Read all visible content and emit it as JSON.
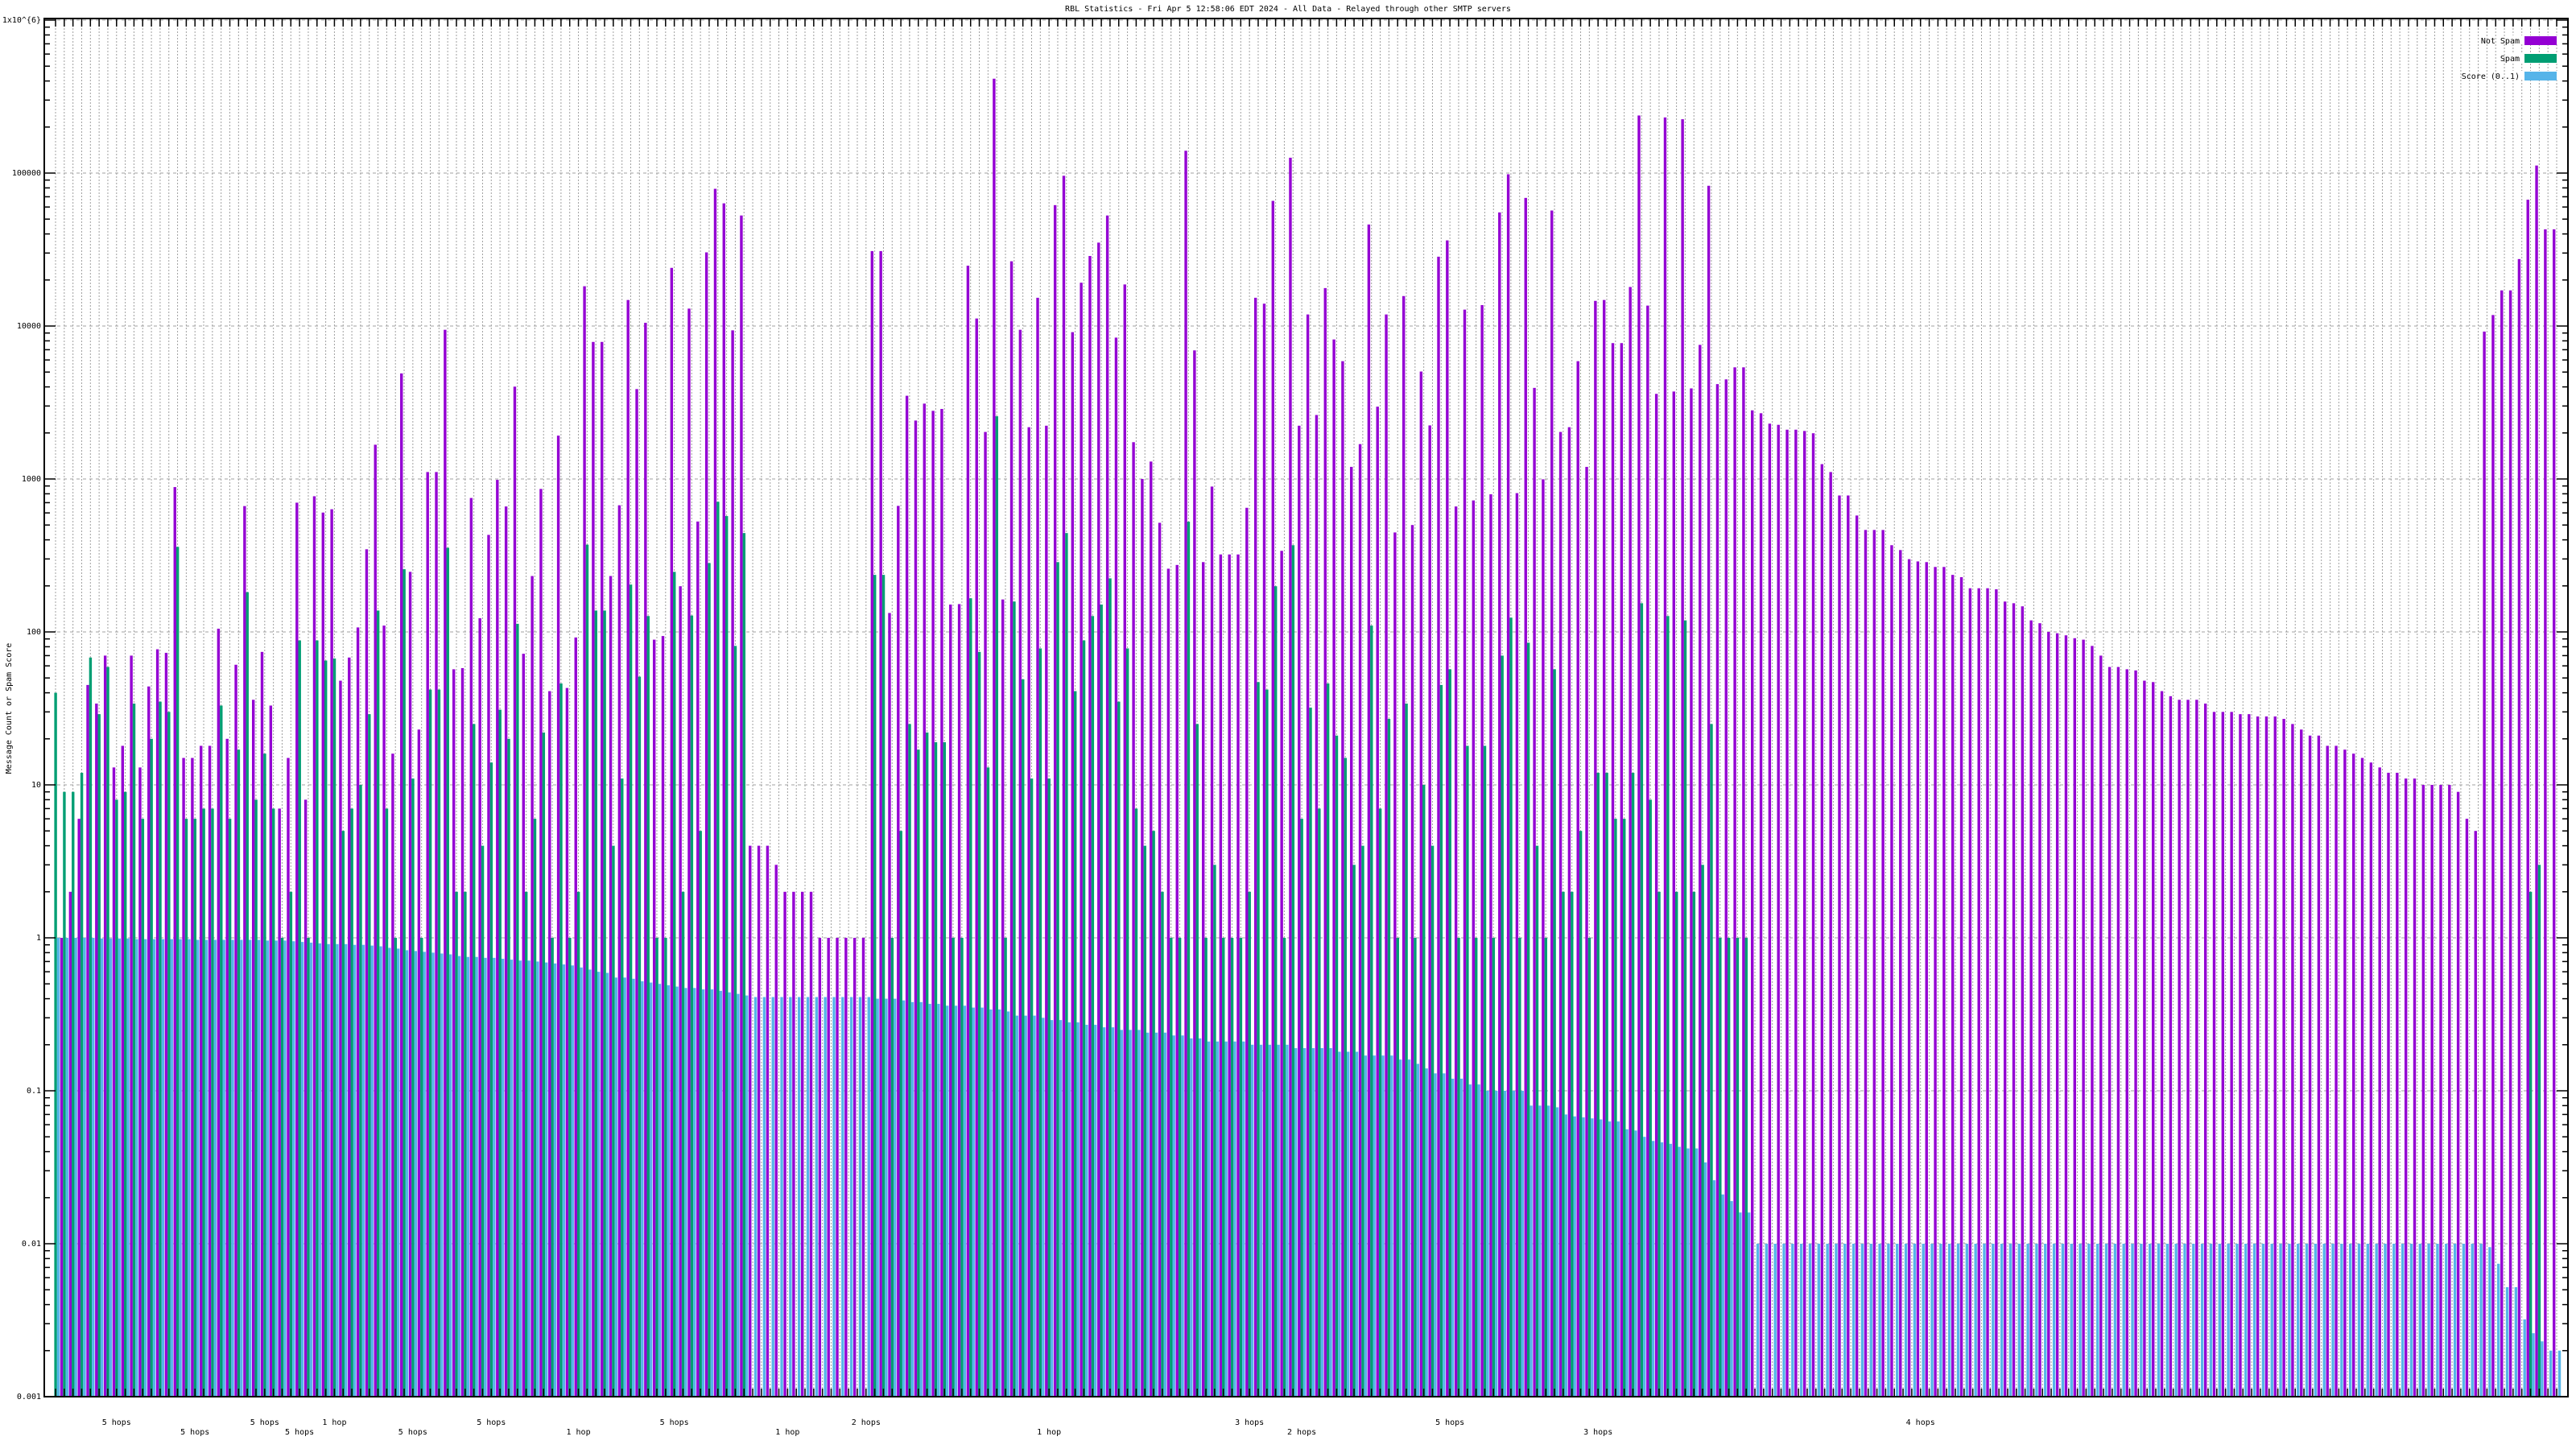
{
  "chart_data": {
    "type": "bar",
    "title": "RBL Statistics - Fri Apr  5 12:58:06 EDT 2024 - All Data - Relayed through other SMTP servers",
    "ylabel": "Message Count or Spam Score",
    "xlabel": "",
    "yscale": "log",
    "ylim": [
      0.001,
      1000000
    ],
    "y_tick_labels": [
      "1x10^{6}",
      "100000",
      "10000",
      "1000",
      "100",
      "10",
      "1",
      "0.1",
      "0.01",
      "0.001"
    ],
    "y_tick_values": [
      1000000,
      100000,
      10000,
      1000,
      100,
      10,
      1,
      0.1,
      0.01,
      0.001
    ],
    "grid": true,
    "legend_position": "top-right",
    "group_count": 288,
    "x_labels_readable": [
      {
        "group": 8,
        "text": "5 hops"
      },
      {
        "group": 17,
        "text": "5 hops"
      },
      {
        "group": 25,
        "text": "5 hops"
      },
      {
        "group": 29,
        "text": "5 hops"
      },
      {
        "group": 33,
        "text": "1 hop"
      },
      {
        "group": 42,
        "text": "5 hops"
      },
      {
        "group": 51,
        "text": "5 hops"
      },
      {
        "group": 61,
        "text": "1 hop"
      },
      {
        "group": 72,
        "text": "5 hops"
      },
      {
        "group": 85,
        "text": "1 hop"
      },
      {
        "group": 94,
        "text": "2 hops"
      },
      {
        "group": 115,
        "text": "1 hop"
      },
      {
        "group": 138,
        "text": "3 hops"
      },
      {
        "group": 144,
        "text": "2 hops"
      },
      {
        "group": 161,
        "text": "5 hops"
      },
      {
        "group": 178,
        "text": "3 hops"
      },
      {
        "group": 215,
        "text": "4 hops"
      }
    ],
    "series": [
      {
        "name": "Not Spam",
        "color": "#9400d3",
        "values": [
          0,
          1,
          2,
          6,
          45,
          34,
          70,
          13,
          18,
          70,
          13,
          44,
          77,
          73,
          885,
          15,
          15,
          18,
          18,
          105,
          20,
          61,
          665,
          36,
          74,
          33,
          7,
          15,
          700,
          8,
          771,
          603,
          634,
          48,
          68,
          107,
          347,
          1675,
          110,
          16,
          4900,
          247,
          23,
          1110,
          1110,
          9450,
          57,
          58,
          751,
          123,
          431,
          987,
          661,
          4015,
          72,
          232,
          861,
          41,
          1920,
          43,
          92,
          18200,
          7870,
          7870,
          232,
          673,
          14800,
          3870,
          10500,
          89,
          94,
          24000,
          199,
          13000,
          527,
          30300,
          78900,
          63400,
          9370,
          52800,
          4,
          4,
          4,
          3,
          2,
          2,
          2,
          2,
          1,
          1,
          1,
          1,
          1,
          1,
          30900,
          30900,
          133,
          667,
          3500,
          2410,
          3110,
          2790,
          2870,
          151,
          152,
          24800,
          11200,
          2030,
          414000,
          163,
          26500,
          9450,
          2180,
          15300,
          2230,
          61700,
          96000,
          9120,
          19200,
          28700,
          35100,
          52800,
          8400,
          18700,
          1740,
          1000,
          1300,
          517,
          259,
          274,
          140000,
          6930,
          286,
          892,
          321,
          321,
          321,
          648,
          15300,
          14000,
          65800,
          339,
          126000,
          2230,
          11900,
          2620,
          17700,
          8170,
          5890,
          1200,
          1690,
          46100,
          2970,
          11900,
          447,
          15700,
          500,
          5040,
          2240,
          28400,
          36300,
          661,
          12800,
          724,
          13700,
          794,
          55300,
          98200,
          808,
          68800,
          3940,
          995,
          56900,
          2030,
          2180,
          5890,
          1200,
          14600,
          14800,
          7730,
          7730,
          18000,
          238000,
          13600,
          3600,
          231000,
          3730,
          225000,
          3910,
          7530,
          82600,
          4170,
          4480,
          5370,
          5370,
          2810,
          2690,
          2300,
          2260,
          2100,
          2100,
          2060,
          1990,
          1250,
          1110,
          780,
          780,
          577,
          464,
          464,
          464,
          369,
          343,
          299,
          289,
          286,
          266,
          266,
          236,
          228,
          193,
          193,
          193,
          190,
          158,
          154,
          147,
          119,
          114,
          100,
          98,
          95,
          91,
          89,
          81,
          70,
          59,
          59,
          57,
          56,
          48,
          47,
          41,
          38,
          36,
          36,
          36,
          34,
          30,
          30,
          30,
          29,
          29,
          28,
          28,
          28,
          27,
          25,
          23,
          21,
          21,
          18,
          18,
          17,
          16,
          15,
          14,
          13,
          12,
          12,
          11,
          11,
          10,
          10,
          10,
          10,
          9,
          6,
          5,
          9200,
          11800,
          17100,
          17100,
          27400,
          67000,
          112000,
          42900,
          42900
        ]
      },
      {
        "name": "Spam",
        "color": "#009e73",
        "values": [
          40,
          9,
          9,
          12,
          68,
          29,
          59,
          8,
          9,
          34,
          6,
          20,
          35,
          30,
          360,
          6,
          6,
          7,
          7,
          33,
          6,
          17,
          182,
          8,
          16,
          7,
          1,
          2,
          88,
          1,
          88,
          65,
          67,
          5,
          7,
          10,
          29,
          138,
          7,
          1,
          257,
          11,
          1,
          42,
          42,
          355,
          2,
          2,
          25,
          4,
          14,
          31,
          20,
          113,
          2,
          6,
          22,
          1,
          46,
          1,
          2,
          372,
          138,
          138,
          4,
          11,
          204,
          51,
          127,
          1,
          1,
          247,
          2,
          128,
          5,
          282,
          710,
          572,
          81,
          443,
          0,
          0,
          0,
          0,
          0,
          0,
          0,
          0,
          0,
          0,
          0,
          0,
          0,
          0,
          236,
          236,
          1,
          5,
          25,
          17,
          22,
          19,
          19,
          1,
          1,
          166,
          74,
          13,
          2570,
          1,
          158,
          49,
          11,
          78,
          11,
          286,
          443,
          41,
          88,
          127,
          151,
          224,
          35,
          78,
          7,
          4,
          5,
          2,
          1,
          1,
          526,
          25,
          1,
          3,
          1,
          1,
          1,
          2,
          47,
          42,
          199,
          1,
          369,
          6,
          32,
          7,
          46,
          21,
          15,
          3,
          4,
          110,
          7,
          27,
          1,
          34,
          1,
          10,
          4,
          45,
          57,
          1,
          18,
          1,
          18,
          1,
          70,
          124,
          1,
          85,
          4,
          1,
          57,
          2,
          2,
          5,
          1,
          12,
          12,
          6,
          6,
          12,
          154,
          8,
          2,
          127,
          2,
          119,
          2,
          3,
          25,
          1,
          1,
          1,
          1,
          0,
          0,
          0,
          0,
          0,
          0,
          0,
          0,
          0,
          0,
          0,
          0,
          0,
          0,
          0,
          0,
          0,
          0,
          0,
          0,
          0,
          0,
          0,
          0,
          0,
          0,
          0,
          0,
          0,
          0,
          0,
          0,
          0,
          0,
          0,
          0,
          0,
          0,
          0,
          0,
          0,
          0,
          0,
          0,
          0,
          0,
          0,
          0,
          0,
          0,
          0,
          0,
          0,
          0,
          0,
          0,
          0,
          0,
          0,
          0,
          0,
          0,
          0,
          0,
          0,
          0,
          0,
          0,
          0,
          0,
          0,
          0,
          0,
          0,
          0,
          0,
          0,
          0,
          0,
          0,
          0,
          0,
          0,
          0,
          0,
          0,
          0,
          0,
          0,
          2,
          3,
          0,
          0
        ]
      },
      {
        "name": "Score (0..1)",
        "color": "#56b4e9",
        "values": [
          1,
          1,
          1,
          1,
          1,
          0.99,
          0.99,
          0.99,
          0.99,
          0.98,
          0.98,
          0.98,
          0.98,
          0.98,
          0.98,
          0.98,
          0.97,
          0.97,
          0.97,
          0.97,
          0.97,
          0.97,
          0.97,
          0.97,
          0.96,
          0.96,
          0.96,
          0.95,
          0.94,
          0.93,
          0.92,
          0.91,
          0.91,
          0.91,
          0.9,
          0.9,
          0.89,
          0.88,
          0.86,
          0.85,
          0.83,
          0.82,
          0.81,
          0.8,
          0.79,
          0.78,
          0.76,
          0.75,
          0.75,
          0.74,
          0.74,
          0.73,
          0.72,
          0.71,
          0.71,
          0.7,
          0.69,
          0.68,
          0.67,
          0.66,
          0.64,
          0.62,
          0.6,
          0.59,
          0.55,
          0.55,
          0.54,
          0.52,
          0.51,
          0.5,
          0.49,
          0.48,
          0.47,
          0.47,
          0.46,
          0.46,
          0.45,
          0.44,
          0.43,
          0.42,
          0.41,
          0.41,
          0.41,
          0.41,
          0.41,
          0.41,
          0.41,
          0.41,
          0.41,
          0.41,
          0.41,
          0.41,
          0.41,
          0.41,
          0.4,
          0.4,
          0.4,
          0.39,
          0.38,
          0.38,
          0.37,
          0.37,
          0.36,
          0.36,
          0.36,
          0.35,
          0.35,
          0.34,
          0.34,
          0.33,
          0.31,
          0.31,
          0.31,
          0.3,
          0.29,
          0.29,
          0.28,
          0.28,
          0.27,
          0.27,
          0.26,
          0.26,
          0.25,
          0.25,
          0.25,
          0.24,
          0.24,
          0.24,
          0.23,
          0.23,
          0.22,
          0.22,
          0.21,
          0.21,
          0.21,
          0.21,
          0.21,
          0.2,
          0.2,
          0.2,
          0.2,
          0.2,
          0.19,
          0.19,
          0.19,
          0.19,
          0.19,
          0.18,
          0.18,
          0.18,
          0.17,
          0.17,
          0.17,
          0.17,
          0.16,
          0.16,
          0.15,
          0.14,
          0.13,
          0.13,
          0.12,
          0.12,
          0.11,
          0.11,
          0.1,
          0.1,
          0.1,
          0.1,
          0.1,
          0.08,
          0.08,
          0.08,
          0.078,
          0.07,
          0.068,
          0.067,
          0.066,
          0.065,
          0.063,
          0.063,
          0.056,
          0.055,
          0.05,
          0.047,
          0.046,
          0.045,
          0.043,
          0.042,
          0.042,
          0.034,
          0.026,
          0.021,
          0.019,
          0.016,
          0.016,
          0.01,
          0.01,
          0.01,
          0.01,
          0.01,
          0.01,
          0.01,
          0.01,
          0.01,
          0.01,
          0.01,
          0.01,
          0.01,
          0.01,
          0.01,
          0.01,
          0.01,
          0.01,
          0.01,
          0.01,
          0.01,
          0.01,
          0.01,
          0.01,
          0.01,
          0.01,
          0.01,
          0.01,
          0.01,
          0.01,
          0.01,
          0.01,
          0.01,
          0.01,
          0.01,
          0.01,
          0.01,
          0.01,
          0.01,
          0.01,
          0.01,
          0.01,
          0.01,
          0.01,
          0.01,
          0.01,
          0.01,
          0.01,
          0.01,
          0.01,
          0.01,
          0.01,
          0.01,
          0.01,
          0.01,
          0.01,
          0.01,
          0.01,
          0.01,
          0.01,
          0.01,
          0.01,
          0.01,
          0.01,
          0.01,
          0.01,
          0.01,
          0.01,
          0.01,
          0.01,
          0.01,
          0.01,
          0.01,
          0.01,
          0.01,
          0.01,
          0.01,
          0.01,
          0.01,
          0.01,
          0.01,
          0.01,
          0.01,
          0.01,
          0.0095,
          0.0074,
          0.0052,
          0.0052,
          0.0032,
          0.0026,
          0.0023,
          0.002,
          0.002
        ]
      }
    ]
  }
}
